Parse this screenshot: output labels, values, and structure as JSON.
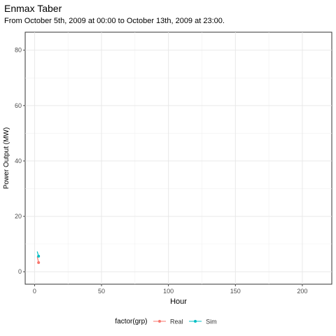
{
  "chart_data": {
    "type": "line",
    "title": "Enmax Taber",
    "subtitle": "From October 5th, 2009 at 00:00 to October 13th, 2009 at 23:00.",
    "xlabel": "Hour",
    "ylabel": "Power Output (MW)",
    "xlim": [
      -7,
      222
    ],
    "ylim": [
      -4.5,
      86.5
    ],
    "x_ticks": [
      0,
      50,
      100,
      150,
      200
    ],
    "y_ticks": [
      0,
      20,
      40,
      60,
      80
    ],
    "grid": true,
    "legend": {
      "title": "factor(grp)",
      "position": "bottom"
    },
    "series": [
      {
        "name": "Real",
        "color": "#F8766D",
        "x": [
          2,
          3
        ],
        "y": [
          5.5,
          3.3
        ]
      },
      {
        "name": "Sim",
        "color": "#00BFC4",
        "x": [
          2,
          3
        ],
        "y": [
          7.3,
          5.6
        ]
      }
    ]
  }
}
